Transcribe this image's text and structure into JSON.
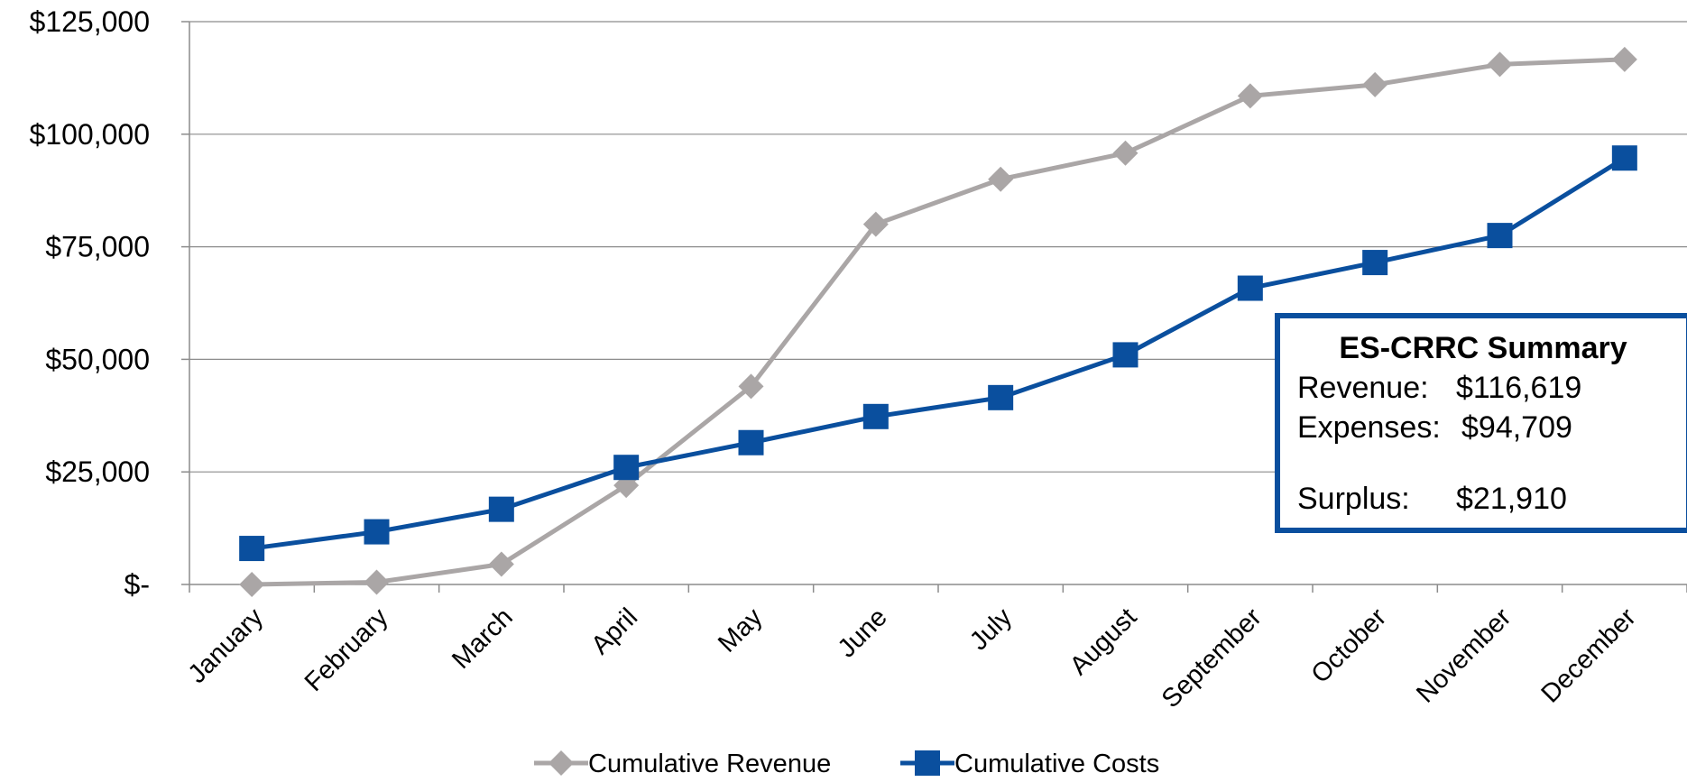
{
  "chart_data": {
    "type": "line",
    "categories": [
      "January",
      "February",
      "March",
      "April",
      "May",
      "June",
      "July",
      "August",
      "September",
      "October",
      "November",
      "December"
    ],
    "series": [
      {
        "name": "Cumulative Revenue",
        "color": "#aaa6a6",
        "marker": "diamond",
        "values": [
          0,
          500,
          4500,
          22000,
          44000,
          80000,
          90000,
          95800,
          108500,
          111000,
          115500,
          116619
        ]
      },
      {
        "name": "Cumulative Costs",
        "color": "#0a4f9e",
        "marker": "square",
        "values": [
          8000,
          11700,
          16700,
          26000,
          31500,
          37300,
          41500,
          51000,
          65800,
          71500,
          77500,
          94709
        ]
      }
    ],
    "ylim": [
      0,
      125000
    ],
    "yticks": [
      0,
      25000,
      50000,
      75000,
      100000,
      125000
    ],
    "ytick_labels": [
      "$-",
      "$25,000",
      "$50,000",
      "$75,000",
      "$100,000",
      "$125,000"
    ],
    "grid": true,
    "legend": "bottom"
  },
  "summary_box": {
    "title": "ES-CRRC Summary",
    "revenue_label": "Revenue:",
    "revenue_value": "$116,619",
    "expenses_label": "Expenses:",
    "expenses_value": "$94,709",
    "surplus_label": "Surplus:",
    "surplus_value": "$21,910",
    "border_color": "#0a4f9e"
  }
}
